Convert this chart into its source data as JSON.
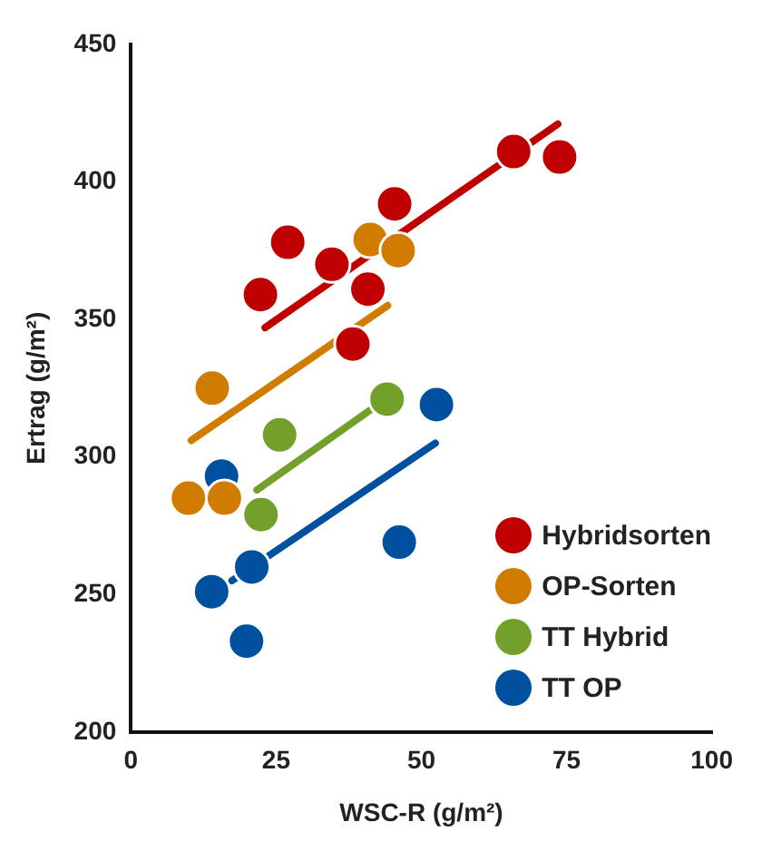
{
  "chart_data": {
    "type": "scatter",
    "xlabel": "WSC-R (g/m²)",
    "ylabel": "Ertrag (g/m²)",
    "xlim": [
      0,
      100
    ],
    "xticks": [
      0,
      25,
      50,
      75,
      100
    ],
    "ylim": [
      200,
      450
    ],
    "yticks": [
      200,
      250,
      300,
      350,
      400,
      450
    ],
    "grid": false,
    "legend": "bottom right",
    "marker": "circle",
    "series": [
      {
        "name": "Hybridsorten",
        "color": "#c00000",
        "x": [
          65.9,
          73.8,
          45.4,
          27,
          34.6,
          22.3,
          40.8,
          38.2
        ],
        "values": [
          411,
          409,
          392,
          378,
          370,
          359,
          361,
          341
        ]
      },
      {
        "name": "OP-Sorten",
        "color": "#d07c00",
        "x": [
          41.2,
          46,
          14,
          9.9,
          16.1
        ],
        "values": [
          379,
          375,
          325,
          285,
          285
        ]
      },
      {
        "name": "TT Hybrid",
        "color": "#72a02a",
        "x": [
          44.1,
          25.6,
          22.4
        ],
        "values": [
          321,
          308,
          279
        ]
      },
      {
        "name": "TT OP",
        "color": "#0050a0",
        "x": [
          52.6,
          15.6,
          46.2,
          20.8,
          13.9,
          19.9
        ],
        "values": [
          319,
          293,
          269,
          260,
          251,
          233
        ]
      },
      {
        "type": "line",
        "marker": "none",
        "color": "#c00000",
        "x": [
          23.1,
          73.5
        ],
        "values": [
          347,
          421
        ]
      },
      {
        "type": "line",
        "marker": "none",
        "color": "#d07c00",
        "x": [
          10.4,
          44.2
        ],
        "values": [
          306,
          355
        ]
      },
      {
        "type": "line",
        "marker": "none",
        "color": "#72a02a",
        "x": [
          21.7,
          41.2
        ],
        "values": [
          288,
          317
        ]
      },
      {
        "type": "line",
        "marker": "none",
        "color": "#0050a0",
        "x": [
          17.4,
          52.4
        ],
        "values": [
          255,
          305
        ]
      }
    ]
  }
}
